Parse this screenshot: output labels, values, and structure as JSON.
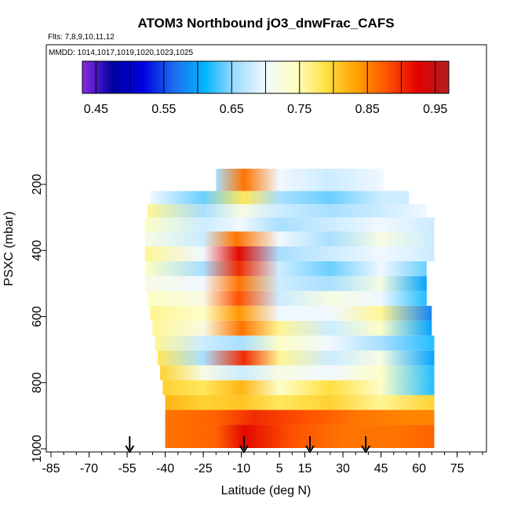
{
  "chart_data": {
    "type": "heatmap",
    "title": "ATOM3 Northbound jO3_dnwFrac_CAFS",
    "flights_note": "Flts: 7,8,9,10,11,12",
    "dates_note": "MMDD: 1014,1017,1019,1020,1023,1025",
    "xlabel": "Latitude (deg N)",
    "ylabel": "PSXC (mbar)",
    "xlim": [
      -85,
      85
    ],
    "ylim": [
      1000,
      50
    ],
    "x_ticks": [
      -85,
      -70,
      -55,
      -40,
      -25,
      -10,
      5,
      15,
      30,
      45,
      60,
      75
    ],
    "x_tick_labels": [
      "-85",
      "-70",
      "-55",
      "-40",
      "-25",
      "-10",
      "5",
      "15",
      "30",
      "45",
      "60",
      "75"
    ],
    "y_ticks": [
      200,
      400,
      600,
      800,
      1000
    ],
    "y_tick_labels": [
      "200",
      "400",
      "600",
      "800",
      "1000"
    ],
    "colorbar": {
      "range": [
        0.43,
        0.97
      ],
      "ticks": [
        0.45,
        0.55,
        0.65,
        0.75,
        0.85,
        0.95
      ],
      "tick_labels": [
        "0.45",
        "0.55",
        "0.65",
        "0.75",
        "0.85",
        "0.95"
      ],
      "divisions": [
        0.45,
        0.5,
        0.55,
        0.6,
        0.65,
        0.7,
        0.75,
        0.8,
        0.85,
        0.9,
        0.95
      ],
      "colors": [
        "#8a2be2",
        "#0000a0",
        "#0000e0",
        "#1e6ef0",
        "#00b4ff",
        "#a0dcff",
        "#f0f8ff",
        "#ffffc0",
        "#ffe040",
        "#ffa000",
        "#ff5000",
        "#e00000",
        "#b42020"
      ]
    },
    "arrows_latitude": [
      -54,
      -9,
      17,
      39
    ],
    "levels": [
      {
        "p": 950,
        "lat_range": [
          -40,
          66
        ],
        "values": [
          {
            "lat": -40,
            "v": 0.86
          },
          {
            "lat": -20,
            "v": 0.87
          },
          {
            "lat": -9,
            "v": 0.92
          },
          {
            "lat": 10,
            "v": 0.88
          },
          {
            "lat": 30,
            "v": 0.86
          },
          {
            "lat": 50,
            "v": 0.86
          },
          {
            "lat": 66,
            "v": 0.87
          }
        ]
      },
      {
        "p": 905,
        "lat_range": [
          -40,
          66
        ],
        "values": [
          {
            "lat": -40,
            "v": 0.86
          },
          {
            "lat": -20,
            "v": 0.87
          },
          {
            "lat": -5,
            "v": 0.9
          },
          {
            "lat": 15,
            "v": 0.88
          },
          {
            "lat": 35,
            "v": 0.86
          },
          {
            "lat": 55,
            "v": 0.85
          },
          {
            "lat": 66,
            "v": 0.85
          }
        ]
      },
      {
        "p": 860,
        "lat_range": [
          -40,
          66
        ],
        "values": [
          {
            "lat": -40,
            "v": 0.82
          },
          {
            "lat": -25,
            "v": 0.8
          },
          {
            "lat": -10,
            "v": 0.81
          },
          {
            "lat": 5,
            "v": 0.78
          },
          {
            "lat": 25,
            "v": 0.8
          },
          {
            "lat": 45,
            "v": 0.76
          },
          {
            "lat": 66,
            "v": 0.8
          }
        ]
      },
      {
        "p": 815,
        "lat_range": [
          -41,
          66
        ],
        "values": [
          {
            "lat": -41,
            "v": 0.8
          },
          {
            "lat": -25,
            "v": 0.78
          },
          {
            "lat": -10,
            "v": 0.82
          },
          {
            "lat": 5,
            "v": 0.74
          },
          {
            "lat": 25,
            "v": 0.79
          },
          {
            "lat": 45,
            "v": 0.74
          },
          {
            "lat": 66,
            "v": 0.62
          }
        ]
      },
      {
        "p": 770,
        "lat_range": [
          -42,
          66
        ],
        "values": [
          {
            "lat": -42,
            "v": 0.8
          },
          {
            "lat": -25,
            "v": 0.72
          },
          {
            "lat": -10,
            "v": 0.68
          },
          {
            "lat": 5,
            "v": 0.72
          },
          {
            "lat": 25,
            "v": 0.7
          },
          {
            "lat": 45,
            "v": 0.74
          },
          {
            "lat": 66,
            "v": 0.62
          }
        ]
      },
      {
        "p": 725,
        "lat_range": [
          -43,
          66
        ],
        "values": [
          {
            "lat": -43,
            "v": 0.78
          },
          {
            "lat": -25,
            "v": 0.66
          },
          {
            "lat": -9,
            "v": 0.9
          },
          {
            "lat": 5,
            "v": 0.76
          },
          {
            "lat": 25,
            "v": 0.68
          },
          {
            "lat": 45,
            "v": 0.72
          },
          {
            "lat": 66,
            "v": 0.6
          }
        ]
      },
      {
        "p": 680,
        "lat_range": [
          -44,
          66
        ],
        "values": [
          {
            "lat": -44,
            "v": 0.76
          },
          {
            "lat": -25,
            "v": 0.68
          },
          {
            "lat": -10,
            "v": 0.66
          },
          {
            "lat": 5,
            "v": 0.74
          },
          {
            "lat": 25,
            "v": 0.7
          },
          {
            "lat": 45,
            "v": 0.66
          },
          {
            "lat": 66,
            "v": 0.62
          }
        ]
      },
      {
        "p": 635,
        "lat_range": [
          -45,
          65
        ],
        "values": [
          {
            "lat": -45,
            "v": 0.76
          },
          {
            "lat": -25,
            "v": 0.72
          },
          {
            "lat": -10,
            "v": 0.86
          },
          {
            "lat": 5,
            "v": 0.76
          },
          {
            "lat": 25,
            "v": 0.68
          },
          {
            "lat": 45,
            "v": 0.74
          },
          {
            "lat": 65,
            "v": 0.6
          }
        ]
      },
      {
        "p": 590,
        "lat_range": [
          -46,
          65
        ],
        "values": [
          {
            "lat": -46,
            "v": 0.76
          },
          {
            "lat": -25,
            "v": 0.74
          },
          {
            "lat": -11,
            "v": 0.84
          },
          {
            "lat": 5,
            "v": 0.7
          },
          {
            "lat": 25,
            "v": 0.7
          },
          {
            "lat": 45,
            "v": 0.76
          },
          {
            "lat": 65,
            "v": 0.58
          }
        ]
      },
      {
        "p": 545,
        "lat_range": [
          -47,
          63
        ],
        "values": [
          {
            "lat": -47,
            "v": 0.74
          },
          {
            "lat": -25,
            "v": 0.72
          },
          {
            "lat": -11,
            "v": 0.88
          },
          {
            "lat": 5,
            "v": 0.68
          },
          {
            "lat": 25,
            "v": 0.72
          },
          {
            "lat": 45,
            "v": 0.7
          },
          {
            "lat": 63,
            "v": 0.62
          }
        ]
      },
      {
        "p": 500,
        "lat_range": [
          -48,
          63
        ],
        "values": [
          {
            "lat": -48,
            "v": 0.72
          },
          {
            "lat": -25,
            "v": 0.7
          },
          {
            "lat": -11,
            "v": 0.86
          },
          {
            "lat": 5,
            "v": 0.68
          },
          {
            "lat": 25,
            "v": 0.66
          },
          {
            "lat": 45,
            "v": 0.72
          },
          {
            "lat": 63,
            "v": 0.6
          }
        ]
      },
      {
        "p": 455,
        "lat_range": [
          -48,
          63
        ],
        "values": [
          {
            "lat": -48,
            "v": 0.74
          },
          {
            "lat": -25,
            "v": 0.66
          },
          {
            "lat": -11,
            "v": 0.9
          },
          {
            "lat": 5,
            "v": 0.68
          },
          {
            "lat": 25,
            "v": 0.64
          },
          {
            "lat": 45,
            "v": 0.7
          },
          {
            "lat": 63,
            "v": 0.64
          }
        ]
      },
      {
        "p": 410,
        "lat_range": [
          -48,
          66
        ],
        "values": [
          {
            "lat": -48,
            "v": 0.76
          },
          {
            "lat": -25,
            "v": 0.7
          },
          {
            "lat": -11,
            "v": 0.92
          },
          {
            "lat": 5,
            "v": 0.66
          },
          {
            "lat": 25,
            "v": 0.68
          },
          {
            "lat": 45,
            "v": 0.7
          },
          {
            "lat": 66,
            "v": 0.68
          }
        ]
      },
      {
        "p": 365,
        "lat_range": [
          -48,
          66
        ],
        "values": [
          {
            "lat": -48,
            "v": 0.72
          },
          {
            "lat": -25,
            "v": 0.68
          },
          {
            "lat": -12,
            "v": 0.86
          },
          {
            "lat": 5,
            "v": 0.7
          },
          {
            "lat": 25,
            "v": 0.66
          },
          {
            "lat": 45,
            "v": 0.72
          },
          {
            "lat": 66,
            "v": 0.68
          }
        ]
      },
      {
        "p": 320,
        "lat_range": [
          -48,
          66
        ],
        "values": [
          {
            "lat": -48,
            "v": 0.74
          },
          {
            "lat": -25,
            "v": 0.68
          },
          {
            "lat": -10,
            "v": 0.7
          },
          {
            "lat": 5,
            "v": 0.66
          },
          {
            "lat": 25,
            "v": 0.68
          },
          {
            "lat": 45,
            "v": 0.7
          },
          {
            "lat": 66,
            "v": 0.68
          }
        ]
      },
      {
        "p": 280,
        "lat_range": [
          -47,
          63
        ],
        "values": [
          {
            "lat": -47,
            "v": 0.76
          },
          {
            "lat": -25,
            "v": 0.66
          },
          {
            "lat": -10,
            "v": 0.72
          },
          {
            "lat": 5,
            "v": 0.68
          },
          {
            "lat": 25,
            "v": 0.66
          },
          {
            "lat": 45,
            "v": 0.68
          },
          {
            "lat": 63,
            "v": 0.7
          }
        ]
      },
      {
        "p": 240,
        "lat_range": [
          -46,
          56
        ],
        "values": [
          {
            "lat": -46,
            "v": 0.7
          },
          {
            "lat": -25,
            "v": 0.64
          },
          {
            "lat": -9,
            "v": 0.78
          },
          {
            "lat": 5,
            "v": 0.66
          },
          {
            "lat": 25,
            "v": 0.64
          },
          {
            "lat": 45,
            "v": 0.68
          },
          {
            "lat": 56,
            "v": 0.68
          }
        ]
      },
      {
        "p": 200,
        "lat_range": [
          -20,
          46
        ],
        "values": [
          {
            "lat": -20,
            "v": 0.66
          },
          {
            "lat": -9,
            "v": 0.86
          },
          {
            "lat": 5,
            "v": 0.7
          },
          {
            "lat": 25,
            "v": 0.68
          },
          {
            "lat": 46,
            "v": 0.7
          }
        ]
      }
    ]
  }
}
